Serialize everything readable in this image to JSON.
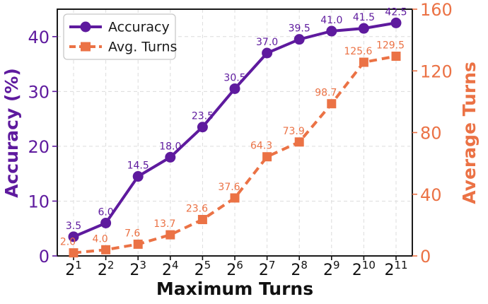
{
  "chart_data": {
    "type": "line",
    "title": "",
    "grid": true,
    "x": {
      "label": "Maximum Turns",
      "tick_base": "2",
      "exponents": [
        1,
        2,
        3,
        4,
        5,
        6,
        7,
        8,
        9,
        10,
        11
      ],
      "tick_labels": [
        "2^1",
        "2^2",
        "2^3",
        "2^4",
        "2^5",
        "2^6",
        "2^7",
        "2^8",
        "2^9",
        "2^10",
        "2^11"
      ]
    },
    "y_left": {
      "label": "Accuracy (%)",
      "color": "#5E1A9E",
      "ticks": [
        0,
        10,
        20,
        30,
        40
      ],
      "range": [
        0,
        45
      ]
    },
    "y_right": {
      "label": "Average Turns",
      "color": "#EB7245",
      "ticks": [
        0,
        40,
        80,
        120,
        160
      ],
      "range": [
        0,
        160
      ]
    },
    "series": [
      {
        "name": "Accuracy",
        "axis": "left",
        "color": "#5E1A9E",
        "marker": "circle",
        "line_style": "solid",
        "values": [
          3.5,
          6.0,
          14.5,
          18.0,
          23.5,
          30.5,
          37.0,
          39.5,
          41.0,
          41.5,
          42.5
        ],
        "point_labels": [
          "3.5",
          "6.0",
          "14.5",
          "18.0",
          "23.5",
          "30.5",
          "37.0",
          "39.5",
          "41.0",
          "41.5",
          "42.5"
        ]
      },
      {
        "name": "Avg. Turns",
        "axis": "right",
        "color": "#EB7245",
        "marker": "square",
        "line_style": "dashed",
        "values": [
          2.0,
          4.0,
          7.6,
          13.7,
          23.6,
          37.6,
          64.3,
          73.9,
          98.7,
          125.6,
          129.5
        ],
        "point_labels": [
          "2.0",
          "4.0",
          "7.6",
          "13.7",
          "23.6",
          "37.6",
          "64.3",
          "73.9",
          "98.7",
          "125.6",
          "129.5"
        ]
      }
    ],
    "legend": {
      "position": "upper left",
      "entries": [
        "Accuracy",
        "Avg. Turns"
      ]
    },
    "style": {
      "grid_color": "#DCDCDC",
      "spine_color": "#000000",
      "x_tick_color": "#111111",
      "legend_text_color": "#1a1a1a",
      "legend_border_color": "#c8c8c8"
    }
  }
}
